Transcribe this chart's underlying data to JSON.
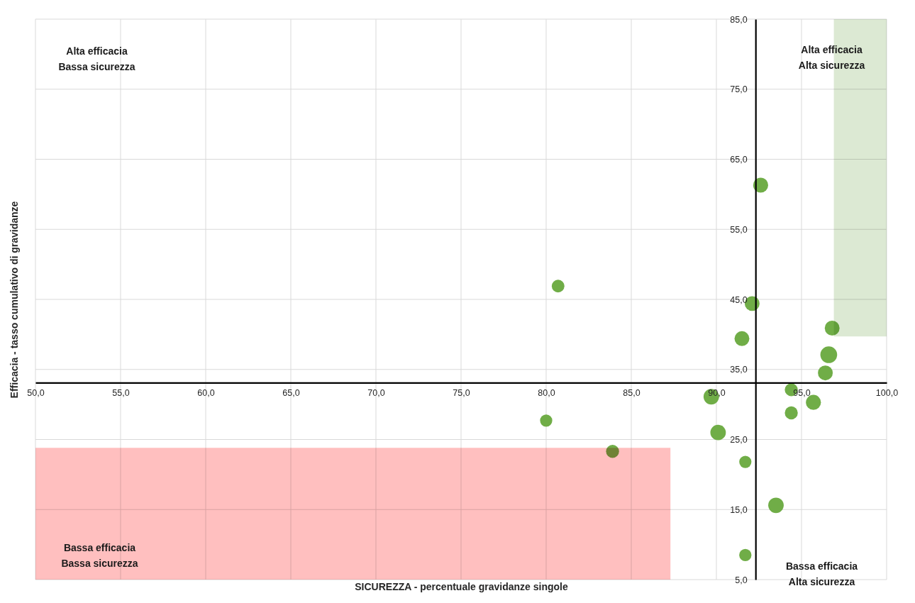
{
  "chart_data": {
    "type": "bubble",
    "xlabel": "SICUREZZA - percentuale gravidanze singole",
    "ylabel": "Efficacia - tasso cumulativo di gravidanze",
    "annotations": [
      "Alta efficacia\nBassa sicurezza",
      "Alta efficacia\nAlta sicurezza",
      "Bassa efficacia\nBassa sicurezza",
      "Bassa efficacia\nAlta sicurezza"
    ],
    "series": [
      {
        "x": [
          92.6,
          80.7,
          92.1,
          91.5,
          96.8,
          96.6,
          96.4,
          94.4,
          95.7,
          89.7,
          94.4,
          80.0,
          90.1,
          83.9,
          91.7,
          93.5,
          91.7
        ],
        "values": [
          61.3,
          46.9,
          44.4,
          39.4,
          40.9,
          37.1,
          34.5,
          32.1,
          30.3,
          31.1,
          28.8,
          27.7,
          26.0,
          23.3,
          21.8,
          15.6,
          8.5
        ],
        "sizes": [
          0.8,
          0.57,
          0.78,
          0.78,
          0.78,
          1,
          0.78,
          0.6,
          0.8,
          0.85,
          0.6,
          0.53,
          0.85,
          0.6,
          0.53,
          0.85,
          0.53
        ],
        "color": "#70ad47",
        "marker": "circle"
      },
      {
        "type": "line",
        "x": [
          96.9,
          100
        ],
        "values": [
          null,
          null
        ],
        "lower": [
          39.7,
          39.7
        ],
        "upper": [
          85,
          85
        ],
        "color": "#dce9d3"
      },
      {
        "type": "line",
        "x": [
          50,
          87.3
        ],
        "values": [
          null,
          null
        ],
        "lower": [
          5,
          5
        ],
        "upper": [
          23.8,
          23.8
        ],
        "color": "#ffbfbf"
      }
    ],
    "xlim": [
      50,
      100
    ],
    "ylim": [
      5,
      85
    ],
    "xticks": [
      {
        "value": 50,
        "label": "50,0"
      },
      {
        "value": 55,
        "label": "55,0"
      },
      {
        "value": 60,
        "label": "60,0"
      },
      {
        "value": 65,
        "label": "65,0"
      },
      {
        "value": 70,
        "label": "70,0"
      },
      {
        "value": 75,
        "label": "75,0"
      },
      {
        "value": 80,
        "label": "80,0"
      },
      {
        "value": 85,
        "label": "85,0"
      },
      {
        "value": 90,
        "label": "90,0"
      },
      {
        "value": 95,
        "label": "95,0"
      },
      {
        "value": 100,
        "label": "100,0"
      }
    ],
    "yticks": [
      {
        "value": 5,
        "label": "5,0"
      },
      {
        "value": 15,
        "label": "15,0"
      },
      {
        "value": 25,
        "label": "25,0"
      },
      {
        "value": 35,
        "label": "35,0"
      },
      {
        "value": 45,
        "label": "45,0"
      },
      {
        "value": 55,
        "label": "55,0"
      },
      {
        "value": 65,
        "label": "65,0"
      },
      {
        "value": 75,
        "label": "75,0"
      },
      {
        "value": 85,
        "label": "85,0"
      }
    ],
    "grid": true
  }
}
